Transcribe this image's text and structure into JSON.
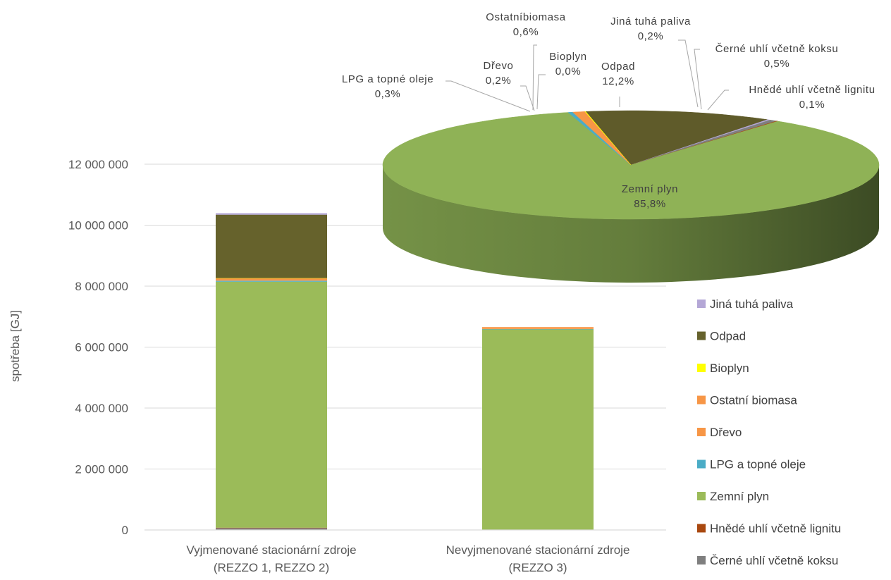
{
  "chart_data": [
    {
      "type": "bar",
      "stacked": true,
      "ylabel": "spotřeba [GJ]",
      "ylim": [
        0,
        12000000
      ],
      "ytick_step": 2000000,
      "yticks": [
        "0",
        "2 000 000",
        "4 000 000",
        "6 000 000",
        "8 000 000",
        "10 000 000",
        "12 000 000"
      ],
      "grid": true,
      "legend_position": "right",
      "categories": [
        [
          "Vyjmenované stacionární zdroje",
          "(REZZO 1, REZZO 2)"
        ],
        [
          "Nevyjmenované stacionární zdroje",
          "(REZZO 3)"
        ]
      ],
      "series": [
        {
          "name": "Černé uhlí včetně koksu",
          "color": "#7f7f7f",
          "values": [
            60000,
            0
          ]
        },
        {
          "name": "Hnědé uhlí včetně lignitu",
          "color": "#a9480f",
          "values": [
            15000,
            0
          ]
        },
        {
          "name": "Zemní plyn",
          "color": "#9bbb59",
          "values": [
            8070000,
            6580000
          ]
        },
        {
          "name": "LPG a topné oleje",
          "color": "#4bacc6",
          "values": [
            30000,
            10000
          ]
        },
        {
          "name": "Dřevo",
          "color": "#f79646",
          "values": [
            25000,
            15000
          ]
        },
        {
          "name": "Ostatní biomasa",
          "color": "#f79646",
          "values": [
            60000,
            50000
          ]
        },
        {
          "name": "Bioplyn",
          "color": "#ffff00",
          "values": [
            3000,
            0
          ]
        },
        {
          "name": "Odpad",
          "color": "#66622c",
          "values": [
            2080000,
            0
          ]
        },
        {
          "name": "Jiná tuhá paliva",
          "color": "#b4a7d6",
          "values": [
            50000,
            0
          ]
        }
      ]
    },
    {
      "type": "pie",
      "three_d": true,
      "slices": [
        {
          "name": "Zemní plyn",
          "label": [
            "Zemní plyn"
          ],
          "percent_label": "85,8%",
          "value": 85.8,
          "color": "#8fb256"
        },
        {
          "name": "LPG a topné oleje",
          "label": [
            "LPG a topné oleje"
          ],
          "percent_label": "0,3%",
          "value": 0.3,
          "color": "#4bacc6"
        },
        {
          "name": "Dřevo",
          "label": [
            "Dřevo"
          ],
          "percent_label": "0,2%",
          "value": 0.2,
          "color": "#f79646"
        },
        {
          "name": "Ostatní biomasa",
          "label": [
            "Ostatníbiomasa"
          ],
          "percent_label": "0,6%",
          "value": 0.6,
          "color": "#f79646"
        },
        {
          "name": "Bioplyn",
          "label": [
            "Bioplyn"
          ],
          "percent_label": "0,0%",
          "value": 0.05,
          "color": "#ffff00"
        },
        {
          "name": "Odpad",
          "label": [
            "Odpad"
          ],
          "percent_label": "12,2%",
          "value": 12.2,
          "color": "#5f5b2a"
        },
        {
          "name": "Jiná tuhá paliva",
          "label": [
            "Jiná tuhá paliva"
          ],
          "percent_label": "0,2%",
          "value": 0.2,
          "color": "#b4a7d6"
        },
        {
          "name": "Černé uhlí včetně koksu",
          "label": [
            "Černé uhlí včetně koksu"
          ],
          "percent_label": "0,5%",
          "value": 0.5,
          "color": "#7f7f7f"
        },
        {
          "name": "Hnědé uhlí včetně lignitu",
          "label": [
            "Hnědé uhlí včetně lignitu"
          ],
          "percent_label": "0,1%",
          "value": 0.1,
          "color": "#a9480f"
        }
      ]
    }
  ],
  "legend": [
    {
      "name": "Jiná tuhá paliva",
      "color": "#b4a7d6"
    },
    {
      "name": "Odpad",
      "color": "#66622c"
    },
    {
      "name": "Bioplyn",
      "color": "#ffff00"
    },
    {
      "name": "Ostatní biomasa",
      "color": "#f79646"
    },
    {
      "name": "Dřevo",
      "color": "#f79646"
    },
    {
      "name": "LPG a topné oleje",
      "color": "#4bacc6"
    },
    {
      "name": "Zemní plyn",
      "color": "#9bbb59"
    },
    {
      "name": "Hnědé uhlí včetně lignitu",
      "color": "#a9480f"
    },
    {
      "name": "Černé uhlí včetně koksu",
      "color": "#7f7f7f"
    }
  ]
}
